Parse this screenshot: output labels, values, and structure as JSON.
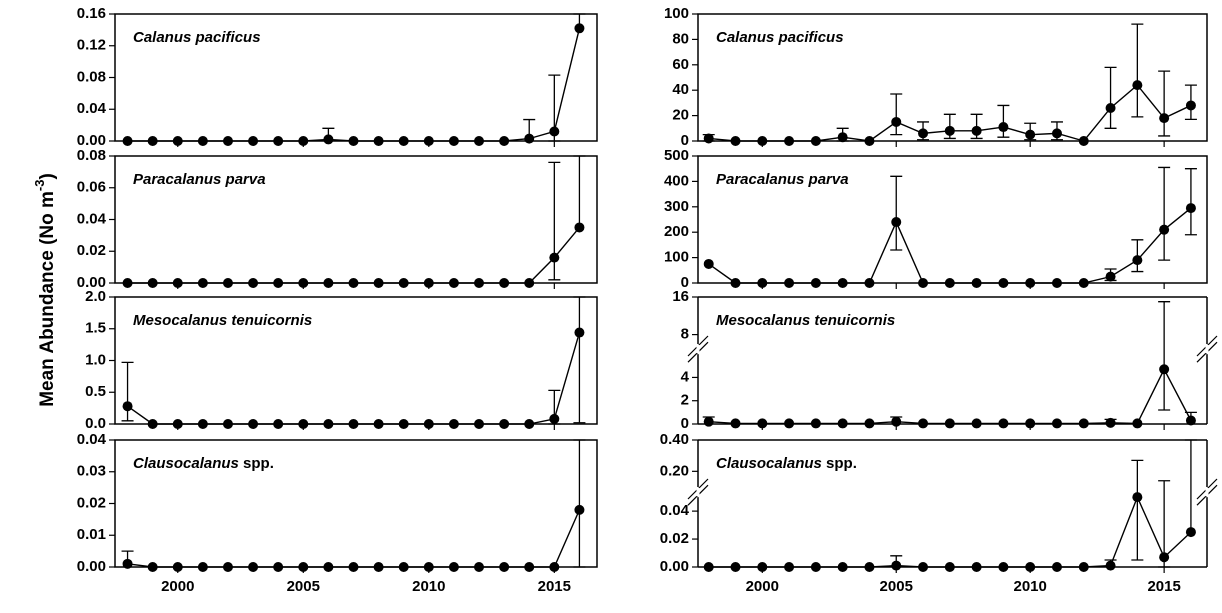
{
  "y_label": {
    "text": "Mean Abundance (No m",
    "sup": "-3",
    "end": ")"
  },
  "chart_data": [
    {
      "type": "line",
      "title": "Calanus pacificus",
      "title_weight": "bold",
      "color": "#000000",
      "x": [
        1998,
        1999,
        2000,
        2001,
        2002,
        2003,
        2004,
        2005,
        2006,
        2007,
        2008,
        2009,
        2010,
        2011,
        2012,
        2013,
        2014,
        2015,
        2016
      ],
      "values": [
        0,
        0,
        0,
        0,
        0,
        0,
        0,
        0,
        0.002,
        0,
        0,
        0,
        0,
        0,
        0,
        0,
        0.003,
        0.012,
        0.142
      ],
      "ci_low": [
        null,
        null,
        null,
        null,
        null,
        null,
        null,
        null,
        null,
        null,
        null,
        null,
        null,
        null,
        null,
        null,
        null,
        0,
        null
      ],
      "ci_high": [
        null,
        null,
        null,
        null,
        null,
        null,
        null,
        null,
        0.016,
        null,
        null,
        null,
        null,
        null,
        null,
        null,
        0.027,
        0.083,
        0.16
      ],
      "xlim": [
        1997.5,
        2016.7
      ],
      "xticks": [
        2000,
        2005,
        2010,
        2015
      ],
      "ylim": [
        0,
        0.16
      ],
      "yticks": [
        {
          "value": 0,
          "label": "0.00"
        },
        0.04,
        0.08,
        0.12,
        0.16
      ]
    },
    {
      "type": "line",
      "title": "Calanus pacificus",
      "title_weight": "bold",
      "color": "#000000",
      "x": [
        1998,
        1999,
        2000,
        2001,
        2002,
        2003,
        2004,
        2005,
        2006,
        2007,
        2008,
        2009,
        2010,
        2011,
        2012,
        2013,
        2014,
        2015,
        2016
      ],
      "values": [
        2,
        0,
        0,
        0,
        0,
        3,
        0,
        15,
        6,
        8,
        8,
        11,
        5,
        6,
        0,
        26,
        44,
        18,
        28
      ],
      "ci_low": [
        0,
        null,
        null,
        null,
        null,
        0,
        null,
        5,
        1,
        2,
        2,
        3,
        1,
        1,
        null,
        10,
        19,
        4,
        17
      ],
      "ci_high": [
        5,
        null,
        null,
        null,
        null,
        10,
        null,
        37,
        15,
        21,
        21,
        28,
        14,
        15,
        null,
        58,
        92,
        55,
        44
      ],
      "xlim": [
        1997.6,
        2016.6
      ],
      "xticks": [
        2000,
        2005,
        2010,
        2015
      ],
      "ylim": [
        0,
        100
      ],
      "yticks": [
        0,
        20,
        40,
        60,
        80,
        100
      ]
    },
    {
      "type": "line",
      "title": "Paracalanus parva",
      "title_weight": "bold",
      "color": "#000000",
      "x": [
        1998,
        1999,
        2000,
        2001,
        2002,
        2003,
        2004,
        2005,
        2006,
        2007,
        2008,
        2009,
        2010,
        2011,
        2012,
        2013,
        2014,
        2015,
        2016
      ],
      "values": [
        0,
        0,
        0,
        0,
        0,
        0,
        0,
        0,
        0,
        0,
        0,
        0,
        0,
        0,
        0,
        0,
        0,
        0.016,
        0.035
      ],
      "ci_low": [
        null,
        null,
        null,
        null,
        null,
        null,
        null,
        null,
        null,
        null,
        null,
        null,
        null,
        null,
        null,
        null,
        null,
        0.002,
        null
      ],
      "ci_high": [
        null,
        null,
        null,
        null,
        null,
        null,
        null,
        null,
        null,
        null,
        null,
        null,
        null,
        null,
        null,
        null,
        null,
        0.076,
        0.08
      ],
      "xlim": [
        1997.5,
        2016.7
      ],
      "xticks": [
        2000,
        2005,
        2010,
        2015
      ],
      "ylim": [
        0,
        0.08
      ],
      "yticks": [
        {
          "value": 0,
          "label": "0.00"
        },
        0.02,
        0.04,
        0.06,
        0.08
      ]
    },
    {
      "type": "line",
      "title": "Paracalanus parva",
      "title_weight": "bold",
      "color": "#000000",
      "x": [
        1998,
        1999,
        2000,
        2001,
        2002,
        2003,
        2004,
        2005,
        2006,
        2007,
        2008,
        2009,
        2010,
        2011,
        2012,
        2013,
        2014,
        2015,
        2016
      ],
      "values": [
        75,
        0,
        0,
        0,
        0,
        0,
        0,
        240,
        0,
        0,
        0,
        0,
        0,
        0,
        0,
        25,
        90,
        210,
        295
      ],
      "ci_low": [
        null,
        null,
        null,
        null,
        null,
        null,
        null,
        130,
        null,
        null,
        null,
        null,
        null,
        null,
        null,
        10,
        45,
        90,
        190
      ],
      "ci_high": [
        null,
        null,
        null,
        null,
        null,
        null,
        null,
        420,
        null,
        null,
        null,
        null,
        null,
        null,
        null,
        55,
        170,
        455,
        450
      ],
      "xlim": [
        1997.6,
        2016.6
      ],
      "xticks": [
        2000,
        2005,
        2010,
        2015
      ],
      "ylim": [
        0,
        500
      ],
      "yticks": [
        0,
        100,
        200,
        300,
        400,
        500
      ]
    },
    {
      "type": "line",
      "title": "Mesocalanus tenuicornis",
      "title_weight": "bold",
      "color": "#000000",
      "x": [
        1998,
        1999,
        2000,
        2001,
        2002,
        2003,
        2004,
        2005,
        2006,
        2007,
        2008,
        2009,
        2010,
        2011,
        2012,
        2013,
        2014,
        2015,
        2016
      ],
      "values": [
        0.28,
        0,
        0,
        0,
        0,
        0,
        0,
        0,
        0,
        0,
        0,
        0,
        0,
        0,
        0,
        0,
        0,
        0.08,
        1.44
      ],
      "ci_low": [
        0.05,
        null,
        null,
        null,
        null,
        null,
        null,
        null,
        null,
        null,
        null,
        null,
        null,
        null,
        null,
        null,
        null,
        0,
        0.02
      ],
      "ci_high": [
        0.97,
        null,
        null,
        null,
        null,
        null,
        null,
        null,
        null,
        null,
        null,
        null,
        null,
        null,
        null,
        null,
        null,
        0.53,
        2.0
      ],
      "xlim": [
        1997.5,
        2016.7
      ],
      "xticks": [
        2000,
        2005,
        2010,
        2015
      ],
      "ylim": [
        0,
        2
      ],
      "yticks": [
        {
          "value": 0,
          "label": "0.0"
        },
        0.5,
        {
          "value": 1,
          "label": "1.0"
        },
        1.5,
        {
          "value": 2,
          "label": "2.0"
        }
      ]
    },
    {
      "type": "line",
      "title": "Mesocalanus tenuicornis",
      "title_weight": "bold",
      "color": "#000000",
      "x": [
        1998,
        1999,
        2000,
        2001,
        2002,
        2003,
        2004,
        2005,
        2006,
        2007,
        2008,
        2009,
        2010,
        2011,
        2012,
        2013,
        2014,
        2015,
        2016
      ],
      "values": [
        0.2,
        0.05,
        0.05,
        0.05,
        0.05,
        0.05,
        0.05,
        0.2,
        0.05,
        0.05,
        0.05,
        0.05,
        0.05,
        0.05,
        0.05,
        0.1,
        0.05,
        4.7,
        0.3
      ],
      "ci_low": [
        null,
        null,
        null,
        null,
        null,
        null,
        null,
        null,
        null,
        null,
        null,
        null,
        null,
        null,
        null,
        null,
        null,
        1.2,
        null
      ],
      "ci_high": [
        0.6,
        null,
        null,
        null,
        null,
        null,
        null,
        0.6,
        null,
        null,
        null,
        null,
        null,
        null,
        null,
        0.4,
        null,
        15,
        1.0
      ],
      "xlim": [
        1997.6,
        2016.6
      ],
      "xticks": [
        2000,
        2005,
        2010,
        2015
      ],
      "ylim": [
        0,
        16
      ],
      "ybreak": [
        6,
        6
      ],
      "yticks": [
        0,
        2,
        4,
        8,
        16
      ]
    },
    {
      "type": "line",
      "title": "Clausocalanus",
      "title_suffix": "spp.",
      "title_weight": "normal",
      "color": "#000000",
      "x": [
        1998,
        1999,
        2000,
        2001,
        2002,
        2003,
        2004,
        2005,
        2006,
        2007,
        2008,
        2009,
        2010,
        2011,
        2012,
        2013,
        2014,
        2015,
        2016
      ],
      "values": [
        0.001,
        0,
        0,
        0,
        0,
        0,
        0,
        0,
        0,
        0,
        0,
        0,
        0,
        0,
        0,
        0,
        0,
        0,
        0.018
      ],
      "ci_low": [
        null,
        null,
        null,
        null,
        null,
        null,
        null,
        null,
        null,
        null,
        null,
        null,
        null,
        null,
        null,
        null,
        null,
        null,
        0
      ],
      "ci_high": [
        0.005,
        null,
        null,
        null,
        null,
        null,
        null,
        null,
        null,
        null,
        null,
        null,
        null,
        null,
        null,
        null,
        null,
        null,
        0.04
      ],
      "xlim": [
        1997.5,
        2016.7
      ],
      "xticks": [
        2000,
        2005,
        2010,
        2015
      ],
      "ylim": [
        0,
        0.04
      ],
      "yticks": [
        {
          "value": 0,
          "label": "0.00"
        },
        0.01,
        0.02,
        0.03,
        0.04
      ]
    },
    {
      "type": "line",
      "title": "Clausocalanus",
      "title_suffix": "spp.",
      "title_weight": "bold",
      "color": "#000000",
      "x": [
        1998,
        1999,
        2000,
        2001,
        2002,
        2003,
        2004,
        2005,
        2006,
        2007,
        2008,
        2009,
        2010,
        2011,
        2012,
        2013,
        2014,
        2015,
        2016
      ],
      "values": [
        0,
        0,
        0,
        0,
        0,
        0,
        0,
        0.001,
        0,
        0,
        0,
        0,
        0,
        0,
        0,
        0.001,
        0.05,
        0.007,
        0.025
      ],
      "ci_low": [
        null,
        null,
        null,
        null,
        null,
        null,
        null,
        null,
        null,
        null,
        null,
        null,
        null,
        null,
        null,
        null,
        0.005,
        0,
        null
      ],
      "ci_high": [
        null,
        null,
        null,
        null,
        null,
        null,
        null,
        0.008,
        null,
        null,
        null,
        null,
        null,
        null,
        null,
        0.005,
        0.27,
        0.14,
        0.4
      ],
      "xlim": [
        1997.6,
        2016.6
      ],
      "xticks": [
        2000,
        2005,
        2010,
        2015
      ],
      "ylim": [
        0,
        0.4
      ],
      "ybreak": [
        0.05,
        0.1
      ],
      "yticks": [
        {
          "value": 0,
          "label": "0.00"
        },
        0.02,
        0.04,
        {
          "value": 0.2,
          "label": "0.20"
        },
        {
          "value": 0.4,
          "label": "0.40"
        }
      ]
    }
  ]
}
